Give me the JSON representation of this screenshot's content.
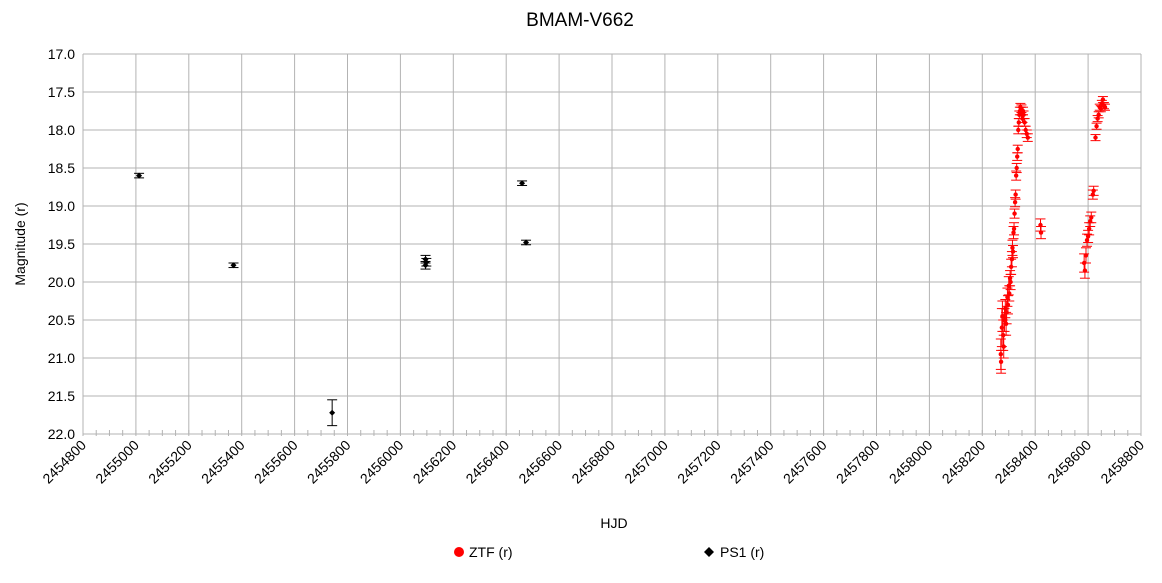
{
  "chart_data": {
    "type": "scatter",
    "title": "BMAM-V662",
    "xlabel": "HJD",
    "ylabel": "Magnitude (r)",
    "xlim": [
      2454800,
      2458800
    ],
    "ylim": [
      17.0,
      22.0
    ],
    "y_inverted": true,
    "grid": true,
    "legend_position": "bottom",
    "x_ticks": [
      2454800,
      2455000,
      2455200,
      2455400,
      2455600,
      2455800,
      2456000,
      2456200,
      2456400,
      2456600,
      2456800,
      2457000,
      2457200,
      2457400,
      2457600,
      2457800,
      2458000,
      2458200,
      2458400,
      2458600,
      2458800
    ],
    "y_ticks": [
      17.0,
      17.5,
      18.0,
      18.5,
      19.0,
      19.5,
      20.0,
      20.5,
      21.0,
      21.5,
      22.0
    ],
    "y_tick_labels": [
      "17.0",
      "17.5",
      "18.0",
      "18.5",
      "19.0",
      "19.5",
      "20.0",
      "20.5",
      "21.0",
      "21.5",
      "22.0"
    ],
    "series": [
      {
        "name": "ZTF (r)",
        "color": "#ff0000",
        "marker": "circle",
        "points": [
          [
            2458270,
            20.95,
            0.2
          ],
          [
            2458271,
            21.05,
            0.15
          ],
          [
            2458274,
            20.6,
            0.25
          ],
          [
            2458276,
            20.45,
            0.2
          ],
          [
            2458279,
            20.7,
            0.2
          ],
          [
            2458281,
            20.85,
            0.15
          ],
          [
            2458284,
            20.5,
            0.15
          ],
          [
            2458287,
            20.35,
            0.12
          ],
          [
            2458290,
            20.55,
            0.15
          ],
          [
            2458292,
            20.4,
            0.15
          ],
          [
            2458295,
            20.2,
            0.12
          ],
          [
            2458297,
            20.3,
            0.12
          ],
          [
            2458300,
            20.05,
            0.12
          ],
          [
            2458302,
            20.15,
            0.1
          ],
          [
            2458305,
            19.95,
            0.1
          ],
          [
            2458307,
            20.0,
            0.1
          ],
          [
            2458309,
            19.8,
            0.1
          ],
          [
            2458312,
            19.7,
            0.1
          ],
          [
            2458314,
            19.55,
            0.1
          ],
          [
            2458316,
            19.6,
            0.08
          ],
          [
            2458318,
            19.35,
            0.08
          ],
          [
            2458320,
            19.3,
            0.08
          ],
          [
            2458322,
            19.1,
            0.06
          ],
          [
            2458324,
            18.95,
            0.06
          ],
          [
            2458326,
            18.85,
            0.06
          ],
          [
            2458328,
            18.6,
            0.06
          ],
          [
            2458330,
            18.5,
            0.06
          ],
          [
            2458332,
            18.35,
            0.05
          ],
          [
            2458334,
            18.25,
            0.05
          ],
          [
            2458336,
            18.0,
            0.05
          ],
          [
            2458338,
            17.9,
            0.05
          ],
          [
            2458340,
            17.8,
            0.05
          ],
          [
            2458342,
            17.75,
            0.05
          ],
          [
            2458344,
            17.7,
            0.05
          ],
          [
            2458346,
            17.75,
            0.05
          ],
          [
            2458348,
            17.72,
            0.05
          ],
          [
            2458350,
            17.8,
            0.05
          ],
          [
            2458352,
            17.85,
            0.05
          ],
          [
            2458354,
            17.75,
            0.05
          ],
          [
            2458356,
            17.8,
            0.05
          ],
          [
            2458360,
            17.9,
            0.05
          ],
          [
            2458364,
            18.0,
            0.05
          ],
          [
            2458368,
            18.05,
            0.05
          ],
          [
            2458372,
            18.1,
            0.05
          ],
          [
            2458420,
            19.25,
            0.08
          ],
          [
            2458422,
            19.35,
            0.08
          ],
          [
            2458585,
            19.75,
            0.12
          ],
          [
            2458588,
            19.85,
            0.1
          ],
          [
            2458592,
            19.65,
            0.1
          ],
          [
            2458596,
            19.45,
            0.08
          ],
          [
            2458600,
            19.4,
            0.08
          ],
          [
            2458604,
            19.3,
            0.08
          ],
          [
            2458608,
            19.2,
            0.07
          ],
          [
            2458612,
            19.15,
            0.07
          ],
          [
            2458618,
            18.85,
            0.06
          ],
          [
            2458621,
            18.8,
            0.06
          ],
          [
            2458628,
            18.1,
            0.04
          ],
          [
            2458632,
            17.95,
            0.04
          ],
          [
            2458636,
            17.85,
            0.04
          ],
          [
            2458640,
            17.8,
            0.04
          ],
          [
            2458644,
            17.7,
            0.04
          ],
          [
            2458648,
            17.72,
            0.04
          ],
          [
            2458652,
            17.65,
            0.04
          ],
          [
            2458656,
            17.6,
            0.04
          ],
          [
            2458660,
            17.68,
            0.04
          ],
          [
            2458664,
            17.7,
            0.04
          ]
        ]
      },
      {
        "name": "PS1 (r)",
        "color": "#000000",
        "marker": "diamond",
        "points": [
          [
            2455012,
            18.6,
            0.03
          ],
          [
            2455369,
            19.78,
            0.03
          ],
          [
            2455742,
            21.72,
            0.17
          ],
          [
            2456095,
            19.7,
            0.05
          ],
          [
            2456095,
            19.78,
            0.05
          ],
          [
            2456098,
            19.74,
            0.05
          ],
          [
            2456460,
            18.7,
            0.03
          ],
          [
            2456475,
            19.48,
            0.03
          ]
        ]
      }
    ]
  }
}
